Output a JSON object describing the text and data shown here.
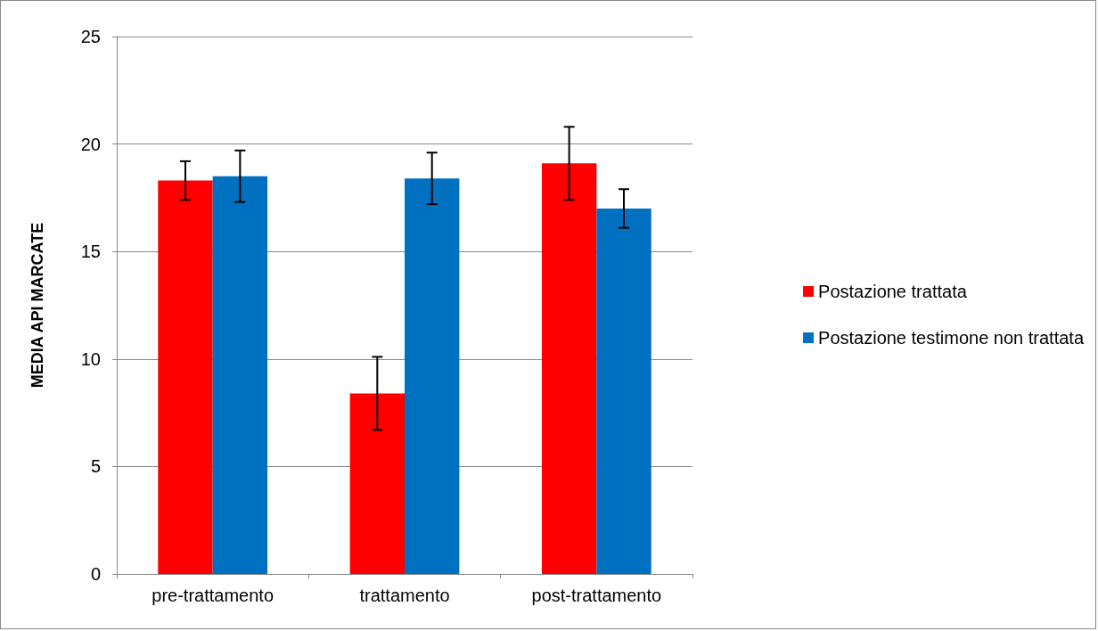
{
  "chart_data": {
    "type": "bar",
    "ylabel": "MEDIA API MARCATE",
    "categories": [
      "pre-trattamento",
      "trattamento",
      "post-trattamento"
    ],
    "series": [
      {
        "name": "Postazione trattata",
        "color": "#ff0000",
        "values": [
          18.3,
          8.4,
          19.1
        ],
        "errors": [
          0.9,
          1.7,
          1.7
        ]
      },
      {
        "name": "Postazione testimone non trattata",
        "color": "#0070c0",
        "values": [
          18.5,
          18.4,
          17.0
        ],
        "errors": [
          1.2,
          1.2,
          0.9
        ]
      }
    ],
    "ylim": [
      0,
      25
    ],
    "yticks": [
      0,
      5,
      10,
      15,
      20,
      25
    ],
    "grid": "y",
    "legend": "right"
  }
}
